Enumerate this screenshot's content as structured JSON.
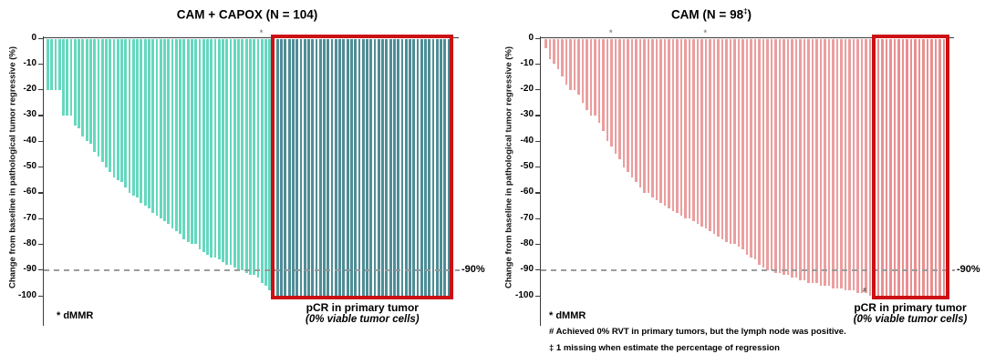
{
  "colors": {
    "background": "#ffffff",
    "axis": "#3c3c3c",
    "dashed_ref_line": "#979797",
    "highlight_box": "#cc1013",
    "marker": "#8b8b8b"
  },
  "chart_data": [
    {
      "type": "bar",
      "variant": "waterfall",
      "title": {
        "main": "CAM + CAPOX (N = 104)",
        "sup": "",
        "close": ""
      },
      "n_patients": 104,
      "ylabel": "Change from baseline in pathological tumor regressive (%)",
      "yticks": [
        0,
        -10,
        -20,
        -30,
        -40,
        -50,
        -60,
        -70,
        -80,
        -90,
        -100
      ],
      "ylim": [
        -100,
        0
      ],
      "grid": false,
      "ref_line": {
        "value": -90,
        "label": "-90%"
      },
      "bar_color": "#65d8be",
      "pcr_bar_color": "#4f8d96",
      "box_color": "#cc1013",
      "values": [
        -20,
        -20,
        -20,
        -20,
        -30,
        -30,
        -30,
        -34,
        -35,
        -38,
        -40,
        -41,
        -44,
        -46,
        -48,
        -50,
        -52,
        -54,
        -55,
        -56,
        -58,
        -60,
        -61,
        -62,
        -64,
        -65,
        -66,
        -68,
        -69,
        -70,
        -71,
        -72,
        -74,
        -75,
        -76,
        -78,
        -79,
        -80,
        -80,
        -82,
        -83,
        -84,
        -85,
        -85,
        -86,
        -87,
        -88,
        -88,
        -89,
        -90,
        -90,
        -91,
        -92,
        -92,
        -93,
        -95,
        -96,
        -98,
        -100,
        -100,
        -100,
        -100,
        -100,
        -100,
        -100,
        -100,
        -100,
        -100,
        -100,
        -100,
        -100,
        -100,
        -100,
        -100,
        -100,
        -100,
        -100,
        -100,
        -100,
        -100,
        -100,
        -100,
        -100,
        -100,
        -100,
        -100,
        -100,
        -100,
        -100,
        -100,
        -100,
        -100,
        -100,
        -100,
        -100,
        -100,
        -100,
        -100,
        -100,
        -100,
        -100,
        -100,
        -100,
        -100
      ],
      "pcr_start_index": 58,
      "pcr_n": 46,
      "asterisk_bar_indices": [
        55
      ],
      "hash_bar_indices": [],
      "pcr_label": {
        "line1": "pCR in primary tumor",
        "line2": "(0% viable tumor cells)"
      },
      "footnotes": [
        "* dMMR"
      ]
    },
    {
      "type": "bar",
      "variant": "waterfall",
      "title": {
        "main": "CAM  (N = 98",
        "sup": "‡",
        "close": ")"
      },
      "n_patients": 98,
      "ylabel": "Change from baseline in pathological tumor regressive (%)",
      "yticks": [
        0,
        -10,
        -20,
        -30,
        -40,
        -50,
        -60,
        -70,
        -80,
        -90,
        -100
      ],
      "ylim": [
        -100,
        0
      ],
      "grid": false,
      "ref_line": {
        "value": -90,
        "label": "-90%"
      },
      "bar_color": "#eb9e9e",
      "pcr_bar_color": "#e98f90",
      "box_color": "#cc1013",
      "values": [
        -4,
        -8,
        -10,
        -12,
        -15,
        -18,
        -20,
        -20,
        -22,
        -25,
        -28,
        -30,
        -30,
        -33,
        -36,
        -40,
        -42,
        -45,
        -47,
        -50,
        -52,
        -54,
        -56,
        -58,
        -60,
        -60,
        -62,
        -63,
        -64,
        -65,
        -66,
        -67,
        -68,
        -69,
        -70,
        -70,
        -71,
        -72,
        -73,
        -74,
        -75,
        -76,
        -77,
        -78,
        -79,
        -80,
        -80,
        -81,
        -82,
        -84,
        -85,
        -86,
        -88,
        -89,
        -90,
        -90,
        -91,
        -91,
        -92,
        -92,
        -93,
        -93,
        -94,
        -94,
        -95,
        -95,
        -95,
        -96,
        -96,
        -96,
        -97,
        -97,
        -97,
        -98,
        -98,
        -98,
        -99,
        -99,
        -99,
        -100,
        -100,
        -100,
        -100,
        -100,
        -100,
        -100,
        -100,
        -100,
        -100,
        -100,
        -100,
        -100,
        -100,
        -100,
        -100,
        -100,
        -100,
        -100
      ],
      "pcr_start_index": 80,
      "pcr_n": 18,
      "asterisk_bar_indices": [
        16,
        39
      ],
      "hash_bar_indices": [
        79
      ],
      "pcr_label": {
        "line1": "pCR in primary tumor",
        "line2": "(0% viable tumor cells)"
      },
      "footnotes": [
        "* dMMR",
        "# Achieved 0% RVT in primary tumors, but the lymph node was positive.",
        "‡ 1 missing when estimate the percentage of regression"
      ]
    }
  ]
}
